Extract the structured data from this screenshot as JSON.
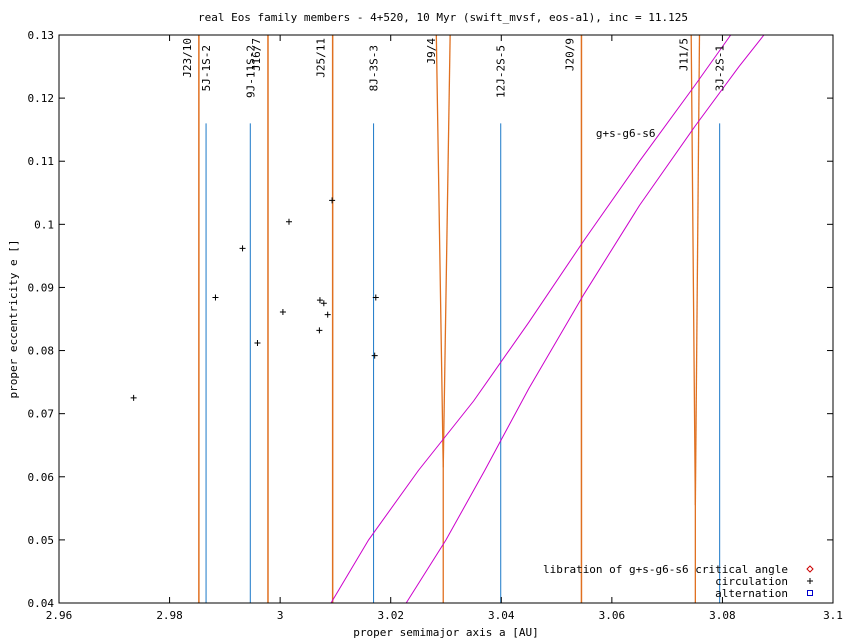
{
  "chart_data": {
    "type": "scatter",
    "title": "real Eos family members - 4+520, 10 Myr (swift_mvsf, eos-a1), inc = 11.125",
    "xlabel": "proper semimajor axis a [AU]",
    "ylabel": "proper eccentricity e []",
    "xlim": [
      2.96,
      3.1
    ],
    "ylim": [
      0.04,
      0.13
    ],
    "xticks": [
      "2.96",
      "2.98",
      "3",
      "3.02",
      "3.04",
      "3.06",
      "3.08",
      "3.1"
    ],
    "yticks": [
      "0.04",
      "0.05",
      "0.06",
      "0.07",
      "0.08",
      "0.09",
      "0.1",
      "0.11",
      "0.12",
      "0.13"
    ],
    "grid": false,
    "legend_position": "bottom-right",
    "legend": [
      {
        "label": "libration of g+s-g6-s6 critical angle",
        "marker": "diamond",
        "color": "#cc0000"
      },
      {
        "label": "circulation",
        "marker": "plus",
        "color": "#000000"
      },
      {
        "label": "alternation",
        "marker": "square",
        "color": "#0000cc"
      }
    ],
    "circulation_points": [
      {
        "x": 2.9735,
        "y": 0.0725
      },
      {
        "x": 2.9883,
        "y": 0.0884
      },
      {
        "x": 2.9932,
        "y": 0.0962
      },
      {
        "x": 2.9959,
        "y": 0.0812
      },
      {
        "x": 3.0005,
        "y": 0.0861
      },
      {
        "x": 3.0016,
        "y": 0.1004
      },
      {
        "x": 3.0071,
        "y": 0.0832
      },
      {
        "x": 3.0072,
        "y": 0.088
      },
      {
        "x": 3.0079,
        "y": 0.0875
      },
      {
        "x": 3.0086,
        "y": 0.0857
      },
      {
        "x": 3.0094,
        "y": 0.1038
      },
      {
        "x": 3.0173,
        "y": 0.0884
      },
      {
        "x": 3.0171,
        "y": 0.0792
      }
    ],
    "mmr_lines": [
      {
        "label": "J23/10",
        "x": 2.9853,
        "width": 0
      },
      {
        "label": "J16/7",
        "x": 2.9978,
        "width": 0
      },
      {
        "label": "J25/11",
        "x": 3.0095,
        "width": 0
      },
      {
        "label": "J9/4",
        "x": 3.0295,
        "width": 0.0025
      },
      {
        "label": "J20/9",
        "x": 3.0545,
        "width": 0
      },
      {
        "label": "J11/5",
        "x": 3.0751,
        "width": 0.0015
      }
    ],
    "three_body_lines": [
      {
        "label": "5J-1S-2",
        "x": 2.9866,
        "ytop": 0.116
      },
      {
        "label": "9J-11S-2",
        "x": 2.9946,
        "ytop": 0.116
      },
      {
        "label": "8J-3S-3",
        "x": 3.0169,
        "ytop": 0.116
      },
      {
        "label": "12J-2S-5",
        "x": 3.0399,
        "ytop": 0.116
      },
      {
        "label": "3J-2S-1",
        "x": 3.0795,
        "ytop": 0.116
      }
    ],
    "secular_resonance": {
      "label": "g+s-g6-s6",
      "label_at": {
        "x": 3.0625,
        "y": 0.1145
      },
      "left_branch": [
        {
          "x": 3.0092,
          "y": 0.04
        },
        {
          "x": 3.016,
          "y": 0.05
        },
        {
          "x": 3.025,
          "y": 0.061
        },
        {
          "x": 3.035,
          "y": 0.072
        },
        {
          "x": 3.045,
          "y": 0.0845
        },
        {
          "x": 3.055,
          "y": 0.0975
        },
        {
          "x": 3.065,
          "y": 0.11
        },
        {
          "x": 3.075,
          "y": 0.122
        },
        {
          "x": 3.0815,
          "y": 0.13
        }
      ],
      "right_branch": [
        {
          "x": 3.0228,
          "y": 0.04
        },
        {
          "x": 3.03,
          "y": 0.05
        },
        {
          "x": 3.037,
          "y": 0.061
        },
        {
          "x": 3.045,
          "y": 0.074
        },
        {
          "x": 3.055,
          "y": 0.089
        },
        {
          "x": 3.065,
          "y": 0.103
        },
        {
          "x": 3.075,
          "y": 0.1155
        },
        {
          "x": 3.083,
          "y": 0.125
        },
        {
          "x": 3.0875,
          "y": 0.13
        }
      ]
    },
    "colors": {
      "mmr": "#e07020",
      "three_body": "#1a78c8",
      "secular": "#cc00cc",
      "points": "#000000"
    }
  }
}
